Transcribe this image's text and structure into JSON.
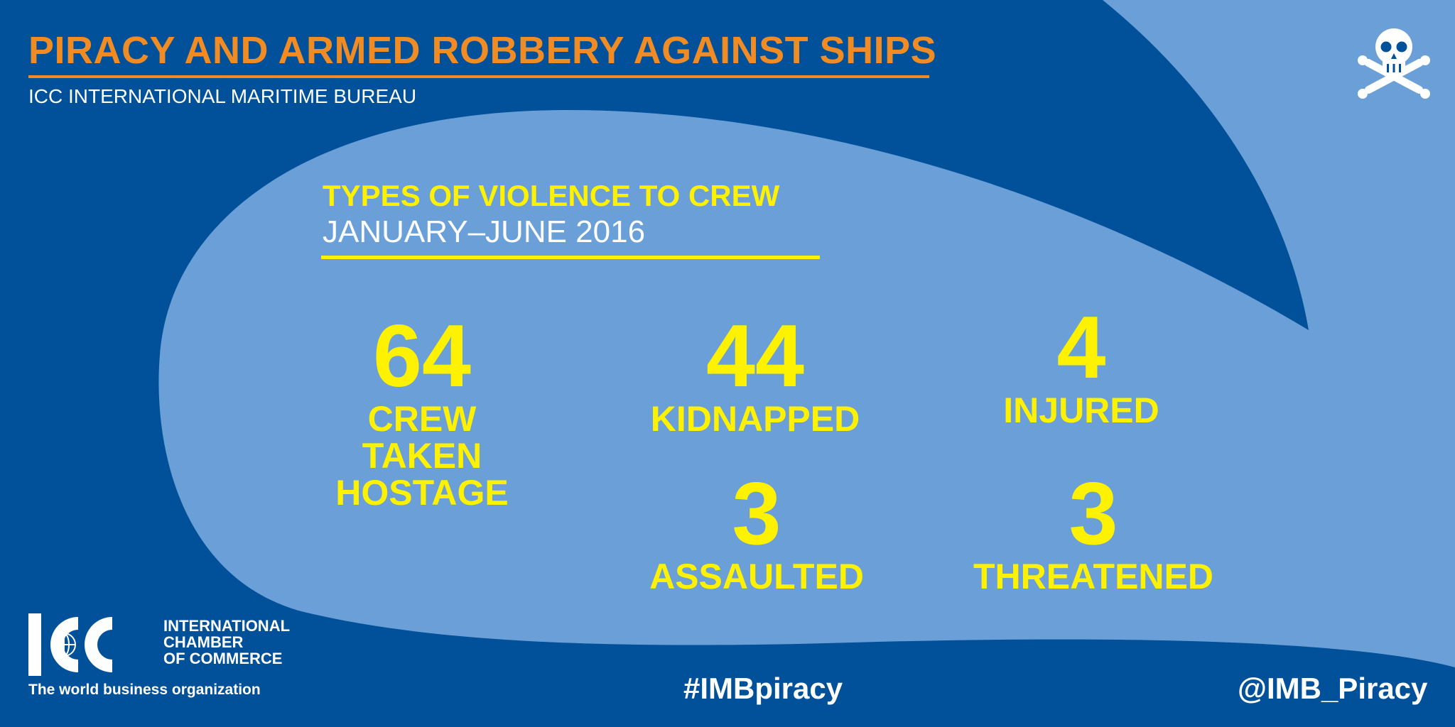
{
  "header": {
    "title": "PIRACY AND ARMED ROBBERY AGAINST SHIPS",
    "subtitle": "ICC INTERNATIONAL MARITIME BUREAU"
  },
  "section": {
    "title": "TYPES OF VIOLENCE TO CREW",
    "period": "JANUARY–JUNE 2016"
  },
  "stats": [
    {
      "value": "64",
      "label": "CREW\nTAKEN\nHOSTAGE"
    },
    {
      "value": "44",
      "label": "KIDNAPPED"
    },
    {
      "value": "4",
      "label": "INJURED"
    },
    {
      "value": "3",
      "label": "ASSAULTED"
    },
    {
      "value": "3",
      "label": "THREATENED"
    }
  ],
  "footer": {
    "logo_text": "ICC",
    "org_name": "INTERNATIONAL\nCHAMBER\nOF COMMERCE",
    "tagline": "The world business organization",
    "hashtag": "#IMBpiracy",
    "handle": "@IMB_Piracy"
  },
  "icons": {
    "corner": "skull-crossbones-icon",
    "logo_globe": "globe-icon"
  },
  "colors": {
    "background": "#01509a",
    "wave": "#6a9fd8",
    "title_orange": "#f08c23",
    "accent_yellow": "#fff200",
    "text_white": "#ffffff"
  }
}
